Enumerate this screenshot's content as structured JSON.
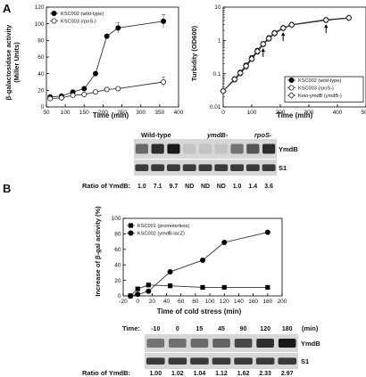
{
  "panels": {
    "a": {
      "letter": "A"
    },
    "b": {
      "letter": "B"
    }
  },
  "chart_data": [
    {
      "type": "line",
      "xlabel": "Time (min)",
      "ylabel_line1": "β-galactosidase activity",
      "ylabel_line2": "(Miller Units)",
      "xlim": [
        50,
        400
      ],
      "ylim": [
        0,
        120
      ],
      "xticks": [
        50,
        100,
        150,
        200,
        250,
        300,
        350,
        400
      ],
      "yticks": [
        0,
        20,
        40,
        60,
        80,
        100,
        120
      ],
      "legend_position": "top-left",
      "series": [
        {
          "name": "KSC002 (wild-type)",
          "marker": "filled-circle",
          "x": [
            60,
            90,
            120,
            150,
            180,
            210,
            240,
            360
          ],
          "y": [
            12,
            13,
            18,
            22,
            40,
            85,
            95,
            103
          ]
        },
        {
          "name": "KSC003 (rpoS-)",
          "marker": "open-circle",
          "x": [
            60,
            90,
            120,
            150,
            180,
            210,
            240,
            360
          ],
          "y": [
            10,
            11,
            14,
            15,
            18,
            21,
            22,
            30
          ]
        }
      ]
    },
    {
      "type": "line",
      "xlabel": "Time (min)",
      "ylabel": "Turbidity (OD600)",
      "scale": "log",
      "xlim": [
        0,
        500
      ],
      "ylim": [
        0.01,
        10
      ],
      "xticks": [
        0,
        100,
        200,
        300,
        400,
        500
      ],
      "yticks": [
        "0.01",
        "0.1",
        "1",
        "10"
      ],
      "legend_position": "bottom-right",
      "arrows_at_x": [
        140,
        210,
        360
      ],
      "series": [
        {
          "name": "KSC002 (wild-type)",
          "marker": "filled-circle",
          "x": [
            0,
            40,
            60,
            80,
            100,
            120,
            140,
            160,
            180,
            210,
            240,
            360,
            440
          ],
          "y": [
            0.03,
            0.07,
            0.11,
            0.18,
            0.3,
            0.5,
            0.8,
            1.2,
            1.7,
            2.4,
            3.0,
            4.2,
            4.8
          ]
        },
        {
          "name": "KSC003 (rpoS-)",
          "marker": "open-circle",
          "x": [
            0,
            40,
            60,
            80,
            100,
            120,
            140,
            160,
            180,
            210,
            240,
            360,
            440
          ],
          "y": [
            0.03,
            0.065,
            0.1,
            0.16,
            0.27,
            0.45,
            0.75,
            1.1,
            1.6,
            2.3,
            2.9,
            4.0,
            4.7
          ]
        },
        {
          "name": "Keio-ymdB (ymdB-)",
          "marker": "open-diamond",
          "x": [
            0,
            40,
            60,
            80,
            100,
            120,
            140,
            160,
            180,
            210,
            240,
            360,
            440
          ],
          "y": [
            0.03,
            0.068,
            0.105,
            0.17,
            0.28,
            0.47,
            0.78,
            1.15,
            1.65,
            2.35,
            2.95,
            4.1,
            4.75
          ]
        }
      ]
    },
    {
      "type": "line",
      "xlabel": "Time of cold stress (min)",
      "ylabel": "Increase of β-gal activity (%)",
      "xlim": [
        -20,
        200
      ],
      "ylim": [
        0,
        100
      ],
      "xticks": [
        -20,
        0,
        20,
        40,
        60,
        80,
        100,
        120,
        140,
        160,
        180,
        200
      ],
      "yticks": [
        0,
        20,
        40,
        60,
        80,
        100
      ],
      "legend_position": "top-left",
      "series": [
        {
          "name": "KSC001 (promoterless)",
          "marker": "filled-square",
          "x": [
            -10,
            0,
            15,
            45,
            90,
            120,
            180
          ],
          "y": [
            0,
            9,
            14,
            13,
            11,
            11,
            11
          ]
        },
        {
          "name": "KSC002 (ymdB-lacZ)",
          "marker": "filled-circle",
          "x": [
            -10,
            0,
            15,
            45,
            90,
            120,
            180
          ],
          "y": [
            0,
            2,
            6,
            31,
            46,
            69,
            82
          ]
        }
      ]
    }
  ],
  "blot_a": {
    "groups": [
      "Wild-type",
      "ymdB-",
      "rpoS-"
    ],
    "band_labels": [
      "YmdB",
      "S1"
    ],
    "ratio_label": "Ratio of YmdB:",
    "ratios": [
      "1.0",
      "7.1",
      "9.7",
      "ND",
      "ND",
      "ND",
      "1.0",
      "1.4",
      "3.6"
    ],
    "intensities": [
      0.55,
      0.85,
      0.95,
      0.1,
      0.1,
      0.1,
      0.5,
      0.65,
      0.85
    ]
  },
  "blot_b": {
    "time_label": "Time:",
    "times": [
      "-10",
      "0",
      "15",
      "45",
      "90",
      "120",
      "180"
    ],
    "time_unit": "(min)",
    "band_labels": [
      "YmdB",
      "S1"
    ],
    "ratio_label": "Ratio of YmdB:",
    "ratios": [
      "1.00",
      "1.02",
      "1.04",
      "1.12",
      "1.62",
      "2.33",
      "2.97"
    ],
    "intensities": [
      0.5,
      0.52,
      0.54,
      0.58,
      0.72,
      0.85,
      0.95
    ]
  }
}
